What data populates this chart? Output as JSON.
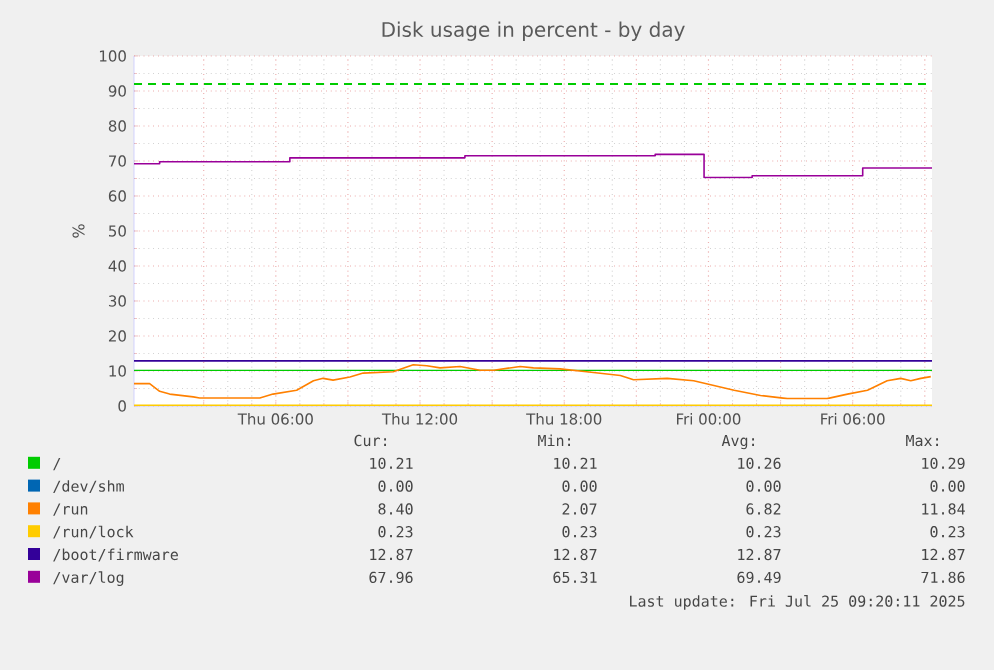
{
  "chart_data": {
    "type": "line",
    "title": "Disk usage in percent - by day",
    "ylabel": "%",
    "xlim": [
      "2025-07-24T00:06",
      "2025-07-25T09:18"
    ],
    "ylim": [
      0,
      100
    ],
    "xticks": [
      {
        "value": "2025-07-24T03:00",
        "label": null
      },
      {
        "value": "2025-07-24T06:00",
        "label": "Thu 06:00"
      },
      {
        "value": "2025-07-24T09:00",
        "label": null
      },
      {
        "value": "2025-07-24T12:00",
        "label": "Thu 12:00"
      },
      {
        "value": "2025-07-24T15:00",
        "label": null
      },
      {
        "value": "2025-07-24T18:00",
        "label": "Thu 18:00"
      },
      {
        "value": "2025-07-24T21:00",
        "label": null
      },
      {
        "value": "2025-07-25T00:00",
        "label": "Fri 00:00"
      },
      {
        "value": "2025-07-25T03:00",
        "label": null
      },
      {
        "value": "2025-07-25T06:00",
        "label": "Fri 06:00"
      },
      {
        "value": "2025-07-25T09:00",
        "label": null
      }
    ],
    "yticks": [
      0,
      10,
      20,
      30,
      40,
      50,
      60,
      70,
      80,
      90,
      100
    ],
    "grid": true,
    "legend": "bottom",
    "series": [
      {
        "name": "/",
        "color": "#00cc00",
        "x": [
          "2025-07-24T00:06",
          "2025-07-25T09:18"
        ],
        "values": [
          10.2,
          10.2
        ]
      },
      {
        "name": "/dev/shm",
        "color": "#0066b3"
      },
      {
        "name": "/run",
        "color": "#ff8000",
        "x": [
          "2025-07-24T00:06",
          "2025-07-24T00:45",
          "2025-07-24T01:10",
          "2025-07-24T01:35",
          "2025-07-24T02:34",
          "2025-07-24T02:50",
          "2025-07-24T05:20",
          "2025-07-24T05:53",
          "2025-07-24T06:52",
          "2025-07-24T07:34",
          "2025-07-24T07:58",
          "2025-07-24T08:23",
          "2025-07-24T09:05",
          "2025-07-24T09:38",
          "2025-07-24T10:53",
          "2025-07-24T11:43",
          "2025-07-24T12:17",
          "2025-07-24T12:50",
          "2025-07-24T13:40",
          "2025-07-24T14:30",
          "2025-07-24T15:04",
          "2025-07-24T16:10",
          "2025-07-24T16:43",
          "2025-07-24T17:50",
          "2025-07-24T18:56",
          "2025-07-24T20:20",
          "2025-07-24T20:53",
          "2025-07-24T22:17",
          "2025-07-24T23:23",
          "2025-07-25T01:04",
          "2025-07-25T02:10",
          "2025-07-25T03:17",
          "2025-07-25T04:56",
          "2025-07-25T05:47",
          "2025-07-25T06:37",
          "2025-07-25T07:26",
          "2025-07-25T08:00",
          "2025-07-25T08:25",
          "2025-07-25T08:50",
          "2025-07-25T09:15"
        ],
        "values": [
          6.4,
          6.4,
          4.2,
          3.4,
          2.6,
          2.3,
          2.3,
          3.4,
          4.5,
          7.2,
          7.9,
          7.4,
          8.3,
          9.4,
          9.8,
          11.8,
          11.5,
          10.9,
          11.3,
          10.2,
          10.2,
          11.3,
          10.9,
          10.6,
          9.8,
          8.7,
          7.5,
          7.9,
          7.2,
          4.5,
          3.0,
          2.1,
          2.1,
          3.4,
          4.5,
          7.2,
          7.9,
          7.2,
          7.9,
          8.4
        ]
      },
      {
        "name": "/run/lock",
        "color": "#ffcc00",
        "x": [
          "2025-07-24T00:06",
          "2025-07-25T09:18"
        ],
        "values": [
          0.2,
          0.2
        ]
      },
      {
        "name": "/boot/firmware",
        "color": "#330099",
        "x": [
          "2025-07-24T00:06",
          "2025-07-25T09:18"
        ],
        "values": [
          12.9,
          12.9
        ]
      },
      {
        "name": "/var/log",
        "color": "#990099",
        "type": "step",
        "x": [
          "2025-07-24T00:06",
          "2025-07-24T01:10",
          "2025-07-24T06:35",
          "2025-07-24T13:52",
          "2025-07-24T21:47",
          "2025-07-24T23:49",
          "2025-07-25T01:49",
          "2025-07-25T06:25",
          "2025-07-25T09:18"
        ],
        "values": [
          69.2,
          69.8,
          70.9,
          71.5,
          71.9,
          65.3,
          65.8,
          68.0,
          68.0
        ]
      }
    ],
    "ref_lines": [
      {
        "axis": "y",
        "value": 92,
        "color": "#00cc00",
        "line_style": "dashed"
      }
    ],
    "annotations": [
      "Cur:",
      "Min:",
      "Avg:",
      "Max:",
      "10.21",
      "10.21",
      "10.26",
      "10.29",
      "0.00",
      "0.00",
      "0.00",
      "0.00",
      "8.40",
      "2.07",
      "6.82",
      "11.84",
      "0.23",
      "0.23",
      "0.23",
      "0.23",
      "12.87",
      "12.87",
      "12.87",
      "12.87",
      "67.96",
      "65.31",
      "69.49",
      "71.86",
      "Last update: Fri Jul 25 09:20:11 2025"
    ]
  }
}
